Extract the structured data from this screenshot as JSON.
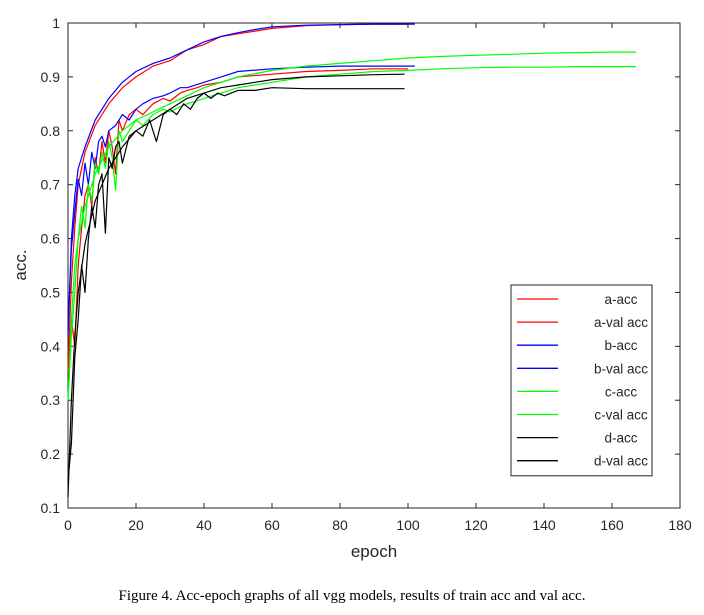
{
  "caption": "Figure 4. Acc-epoch graphs of all vgg models, results of train acc and val acc.",
  "chart_data": {
    "type": "line",
    "title": "",
    "xlabel": "epoch",
    "ylabel": "acc.",
    "xlim": [
      0,
      180
    ],
    "ylim": [
      0.1,
      1
    ],
    "xticks": [
      0,
      20,
      40,
      60,
      80,
      100,
      120,
      140,
      160,
      180
    ],
    "yticks": [
      0.1,
      0.2,
      0.3,
      0.4,
      0.5,
      0.6,
      0.7,
      0.8,
      0.9,
      1
    ],
    "ytick_labels": [
      "0.1",
      "0.2",
      "0.3",
      "0.4",
      "0.5",
      "0.6",
      "0.7",
      "0.8",
      "0.9",
      "1"
    ],
    "grid": false,
    "legend_position": "bottom-right",
    "series": [
      {
        "name": "a-acc",
        "color": "#ff0000",
        "x": [
          0,
          1,
          2,
          3,
          5,
          8,
          12,
          16,
          20,
          25,
          30,
          35,
          40,
          45,
          50,
          55,
          60,
          70,
          80,
          90,
          100
        ],
        "y": [
          0.36,
          0.52,
          0.62,
          0.7,
          0.76,
          0.81,
          0.85,
          0.88,
          0.9,
          0.92,
          0.93,
          0.95,
          0.96,
          0.975,
          0.98,
          0.985,
          0.99,
          0.995,
          0.997,
          0.998,
          0.998
        ]
      },
      {
        "name": "a-val acc",
        "color": "#ff0000",
        "x": [
          0,
          1,
          2,
          3,
          4,
          5,
          6,
          7,
          8,
          9,
          10,
          11,
          12,
          13,
          14,
          15,
          16,
          18,
          20,
          22,
          25,
          28,
          30,
          33,
          35,
          38,
          40,
          45,
          50,
          60,
          70,
          80,
          90,
          100
        ],
        "y": [
          0.35,
          0.45,
          0.4,
          0.55,
          0.62,
          0.68,
          0.7,
          0.66,
          0.75,
          0.72,
          0.78,
          0.74,
          0.8,
          0.77,
          0.72,
          0.82,
          0.8,
          0.83,
          0.84,
          0.83,
          0.85,
          0.86,
          0.855,
          0.87,
          0.875,
          0.88,
          0.885,
          0.89,
          0.9,
          0.905,
          0.91,
          0.912,
          0.915,
          0.915
        ]
      },
      {
        "name": "b-acc",
        "color": "#0000ff",
        "x": [
          0,
          1,
          2,
          3,
          5,
          8,
          12,
          16,
          20,
          25,
          30,
          35,
          40,
          45,
          50,
          55,
          60,
          70,
          80,
          90,
          102
        ],
        "y": [
          0.42,
          0.6,
          0.68,
          0.73,
          0.77,
          0.82,
          0.86,
          0.89,
          0.91,
          0.925,
          0.935,
          0.95,
          0.965,
          0.975,
          0.982,
          0.988,
          0.993,
          0.996,
          0.997,
          0.998,
          0.998
        ]
      },
      {
        "name": "b-val acc",
        "color": "#0000ff",
        "x": [
          0,
          1,
          2,
          3,
          4,
          5,
          6,
          7,
          8,
          9,
          10,
          11,
          12,
          14,
          16,
          18,
          20,
          22,
          25,
          28,
          30,
          33,
          35,
          40,
          45,
          50,
          60,
          70,
          80,
          90,
          102
        ],
        "y": [
          0.43,
          0.58,
          0.65,
          0.71,
          0.68,
          0.74,
          0.7,
          0.76,
          0.73,
          0.78,
          0.79,
          0.77,
          0.8,
          0.81,
          0.83,
          0.82,
          0.84,
          0.85,
          0.86,
          0.865,
          0.87,
          0.88,
          0.88,
          0.89,
          0.9,
          0.91,
          0.915,
          0.918,
          0.92,
          0.92,
          0.92
        ]
      },
      {
        "name": "c-acc",
        "color": "#00ff00",
        "x": [
          0,
          1,
          2,
          3,
          5,
          8,
          12,
          16,
          20,
          30,
          40,
          50,
          60,
          70,
          80,
          90,
          100,
          110,
          120,
          130,
          140,
          150,
          160,
          167
        ],
        "y": [
          0.3,
          0.45,
          0.55,
          0.6,
          0.66,
          0.72,
          0.77,
          0.8,
          0.82,
          0.85,
          0.88,
          0.9,
          0.912,
          0.92,
          0.925,
          0.93,
          0.935,
          0.938,
          0.94,
          0.942,
          0.944,
          0.945,
          0.946,
          0.946
        ]
      },
      {
        "name": "c-val acc",
        "color": "#00ff00",
        "x": [
          0,
          1,
          2,
          3,
          4,
          5,
          6,
          7,
          8,
          9,
          10,
          11,
          12,
          13,
          14,
          15,
          16,
          18,
          20,
          22,
          25,
          28,
          30,
          33,
          35,
          40,
          45,
          50,
          60,
          70,
          80,
          90,
          100,
          110,
          120,
          130,
          140,
          150,
          160,
          167
        ],
        "y": [
          0.3,
          0.42,
          0.5,
          0.6,
          0.66,
          0.62,
          0.7,
          0.67,
          0.74,
          0.72,
          0.76,
          0.73,
          0.78,
          0.75,
          0.69,
          0.8,
          0.78,
          0.8,
          0.82,
          0.81,
          0.83,
          0.84,
          0.835,
          0.845,
          0.85,
          0.86,
          0.87,
          0.88,
          0.89,
          0.9,
          0.905,
          0.91,
          0.912,
          0.915,
          0.917,
          0.918,
          0.918,
          0.919,
          0.919,
          0.919
        ]
      },
      {
        "name": "d-acc",
        "color": "#000000",
        "x": [
          0,
          1,
          2,
          3,
          5,
          8,
          12,
          16,
          20,
          25,
          30,
          35,
          40,
          45,
          50,
          55,
          60,
          70,
          80,
          90,
          99
        ],
        "y": [
          0.12,
          0.3,
          0.42,
          0.5,
          0.59,
          0.67,
          0.73,
          0.77,
          0.8,
          0.82,
          0.84,
          0.86,
          0.87,
          0.88,
          0.885,
          0.89,
          0.895,
          0.9,
          0.902,
          0.904,
          0.905
        ]
      },
      {
        "name": "d-val acc",
        "color": "#000000",
        "x": [
          0,
          1,
          2,
          3,
          4,
          5,
          6,
          7,
          8,
          9,
          10,
          11,
          12,
          13,
          14,
          15,
          16,
          18,
          20,
          22,
          24,
          26,
          28,
          30,
          32,
          34,
          36,
          38,
          40,
          42,
          44,
          46,
          48,
          50,
          55,
          60,
          70,
          80,
          90,
          99
        ],
        "y": [
          0.15,
          0.22,
          0.38,
          0.45,
          0.55,
          0.5,
          0.6,
          0.66,
          0.62,
          0.7,
          0.72,
          0.61,
          0.75,
          0.73,
          0.77,
          0.78,
          0.74,
          0.79,
          0.8,
          0.79,
          0.82,
          0.78,
          0.83,
          0.84,
          0.83,
          0.85,
          0.84,
          0.86,
          0.87,
          0.86,
          0.87,
          0.865,
          0.87,
          0.875,
          0.875,
          0.88,
          0.878,
          0.878,
          0.878,
          0.878
        ]
      }
    ]
  }
}
